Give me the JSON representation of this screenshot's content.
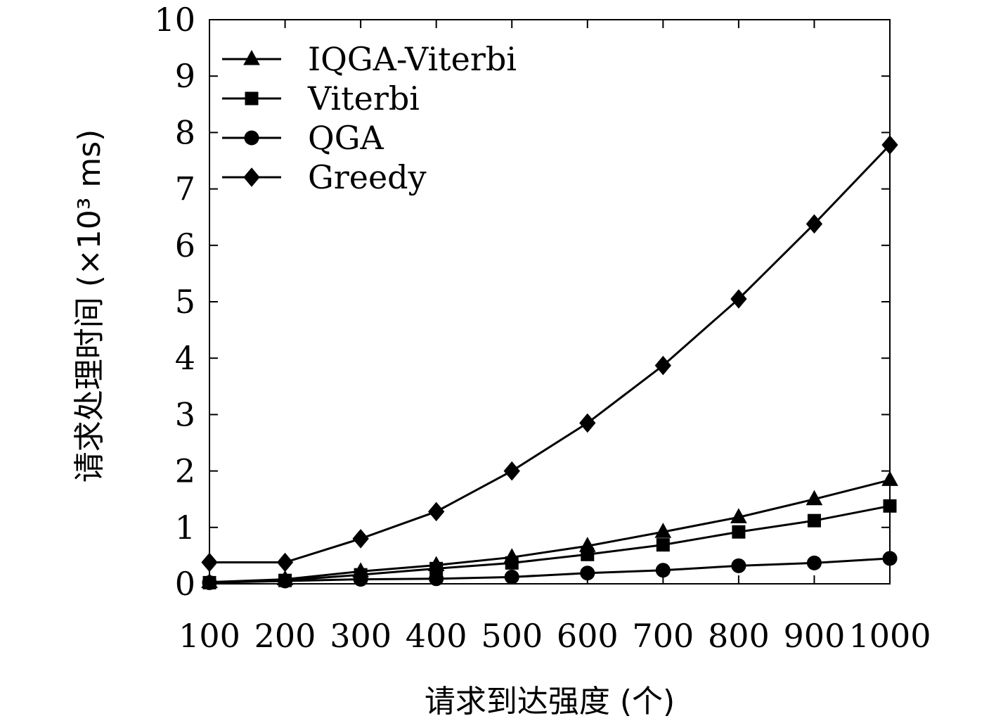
{
  "chart_data": {
    "type": "line",
    "title": "",
    "xlabel": "请求到达强度 (个)",
    "ylabel": "请求处理时间 (×10³ ms)",
    "x": [
      100,
      200,
      300,
      400,
      500,
      600,
      700,
      800,
      900,
      1000
    ],
    "xticks": [
      "100",
      "200",
      "300",
      "400",
      "500",
      "600",
      "700",
      "800",
      "900",
      "1000"
    ],
    "yticks": [
      "0",
      "1",
      "2",
      "3",
      "4",
      "5",
      "6",
      "7",
      "8",
      "9",
      "10"
    ],
    "xlim": [
      100,
      1000
    ],
    "ylim": [
      0,
      10
    ],
    "grid": false,
    "legend_position": "top-left",
    "series": [
      {
        "name": "IQGA-Viterbi",
        "marker": "triangle",
        "values": [
          0.03,
          0.08,
          0.22,
          0.33,
          0.47,
          0.67,
          0.92,
          1.18,
          1.5,
          1.84
        ]
      },
      {
        "name": "Viterbi",
        "marker": "square",
        "values": [
          0.02,
          0.06,
          0.16,
          0.27,
          0.37,
          0.52,
          0.69,
          0.92,
          1.12,
          1.38
        ]
      },
      {
        "name": "QGA",
        "marker": "circle",
        "values": [
          0.02,
          0.05,
          0.08,
          0.09,
          0.12,
          0.19,
          0.24,
          0.32,
          0.37,
          0.45
        ]
      },
      {
        "name": "Greedy",
        "marker": "diamond",
        "values": [
          0.38,
          0.38,
          0.8,
          1.28,
          2.0,
          2.85,
          3.87,
          5.05,
          6.38,
          7.78
        ]
      }
    ]
  }
}
